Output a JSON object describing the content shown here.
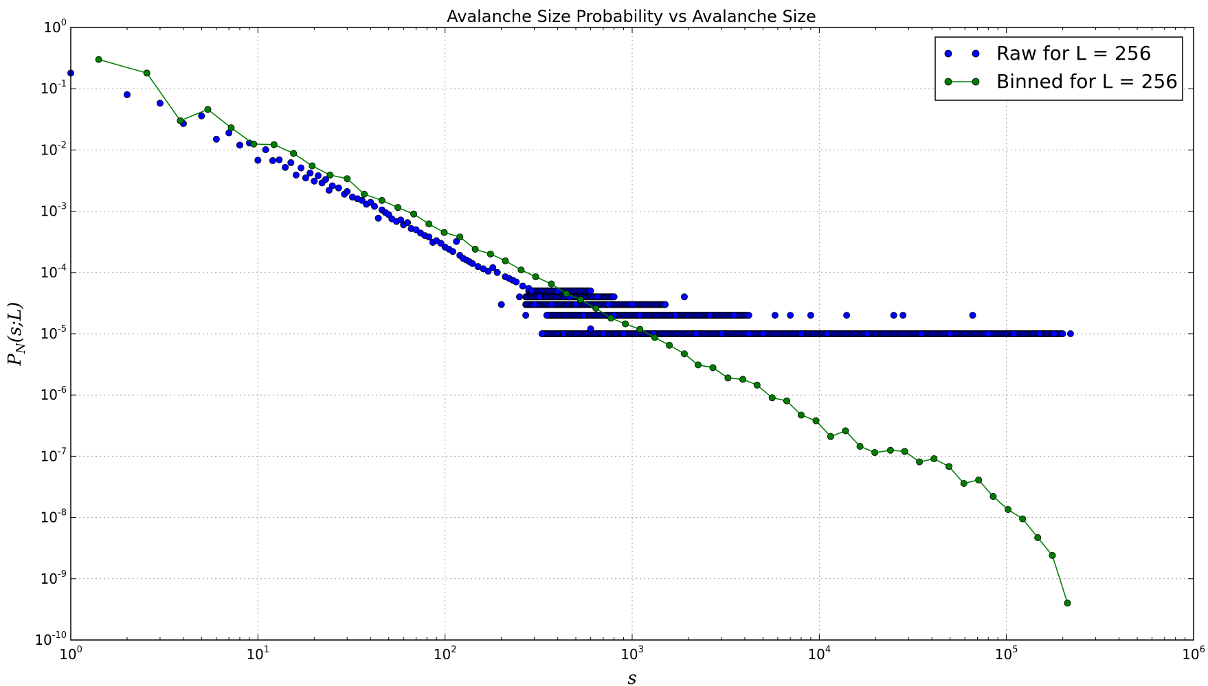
{
  "chart_data": {
    "type": "scatter",
    "title": "Avalanche Size Probability vs Avalanche Size",
    "xlabel": "s",
    "ylabel": "P_N(s;L)",
    "xscale": "log",
    "yscale": "log",
    "xlim": [
      1,
      1000000
    ],
    "ylim": [
      1e-10,
      1
    ],
    "x_tick_exponents": [
      "0",
      "1",
      "2",
      "3",
      "4",
      "5",
      "6"
    ],
    "y_tick_exponents": [
      "0",
      "-1",
      "-2",
      "-3",
      "-4",
      "-5",
      "-6",
      "-7",
      "-8",
      "-9",
      "-10"
    ],
    "tick_base": "10",
    "grid": true,
    "legend_position": "top-right",
    "series": [
      {
        "name": "Raw for L = 256",
        "style": "markers",
        "color": "#0000ff",
        "points": [
          [
            1,
            0.18
          ],
          [
            2,
            0.08
          ],
          [
            3,
            0.058
          ],
          [
            4,
            0.027
          ],
          [
            5,
            0.036
          ],
          [
            6,
            0.015
          ],
          [
            7,
            0.019
          ],
          [
            8,
            0.012
          ],
          [
            9,
            0.013
          ],
          [
            10,
            0.0068
          ],
          [
            11,
            0.0101
          ],
          [
            12,
            0.0067
          ],
          [
            13,
            0.0069
          ],
          [
            14,
            0.0052
          ],
          [
            15,
            0.0062
          ],
          [
            16,
            0.0039
          ],
          [
            17,
            0.0051
          ],
          [
            18,
            0.0035
          ],
          [
            19,
            0.0042
          ],
          [
            20,
            0.0031
          ],
          [
            21,
            0.0038
          ],
          [
            22,
            0.0029
          ],
          [
            23,
            0.0033
          ],
          [
            24,
            0.0022
          ],
          [
            25,
            0.0026
          ],
          [
            27,
            0.0024
          ],
          [
            29,
            0.0019
          ],
          [
            30,
            0.0021
          ],
          [
            32,
            0.0017
          ],
          [
            34,
            0.0016
          ],
          [
            36,
            0.0015
          ],
          [
            38,
            0.0013
          ],
          [
            40,
            0.0014
          ],
          [
            42,
            0.0012
          ],
          [
            44,
            0.00077
          ],
          [
            46,
            0.00105
          ],
          [
            48,
            0.00095
          ],
          [
            50,
            0.00088
          ],
          [
            52,
            0.00075
          ],
          [
            55,
            0.00068
          ],
          [
            58,
            0.00072
          ],
          [
            60,
            0.0006
          ],
          [
            63,
            0.00065
          ],
          [
            66,
            0.00052
          ],
          [
            70,
            0.0005
          ],
          [
            74,
            0.00044
          ],
          [
            78,
            0.0004
          ],
          [
            82,
            0.00038
          ],
          [
            86,
            0.00031
          ],
          [
            90,
            0.00033
          ],
          [
            95,
            0.0003
          ],
          [
            100,
            0.00026
          ],
          [
            105,
            0.00024
          ],
          [
            110,
            0.00022
          ],
          [
            115,
            0.00032
          ],
          [
            120,
            0.00019
          ],
          [
            125,
            0.00017
          ],
          [
            130,
            0.00016
          ],
          [
            135,
            0.00015
          ],
          [
            140,
            0.00014
          ],
          [
            150,
            0.000125
          ],
          [
            160,
            0.000115
          ],
          [
            170,
            0.000105
          ],
          [
            180,
            0.00012
          ],
          [
            190,
            0.0001
          ],
          [
            200,
            3e-05
          ],
          [
            210,
            8.5e-05
          ],
          [
            220,
            8e-05
          ],
          [
            230,
            7.5e-05
          ],
          [
            240,
            7e-05
          ],
          [
            250,
            4e-05
          ],
          [
            260,
            6e-05
          ],
          [
            270,
            2e-05
          ],
          [
            280,
            5.5e-05
          ],
          [
            290,
            5e-05
          ],
          [
            300,
            3e-05
          ],
          [
            320,
            4e-05
          ],
          [
            330,
            1e-05
          ],
          [
            350,
            2e-05
          ],
          [
            370,
            3e-05
          ],
          [
            400,
            5e-05
          ],
          [
            430,
            1e-05
          ],
          [
            460,
            4e-05
          ],
          [
            500,
            3e-05
          ],
          [
            550,
            2e-05
          ],
          [
            600,
            1.2e-05
          ],
          [
            650,
            4e-05
          ],
          [
            700,
            1e-05
          ],
          [
            750,
            3e-05
          ],
          [
            800,
            2e-05
          ],
          [
            900,
            1e-05
          ],
          [
            1000,
            3e-05
          ],
          [
            1100,
            2e-05
          ],
          [
            1300,
            1e-05
          ],
          [
            1500,
            3e-05
          ],
          [
            1700,
            2e-05
          ],
          [
            1900,
            4e-05
          ],
          [
            2200,
            1e-05
          ],
          [
            2600,
            2e-05
          ],
          [
            3000,
            1e-05
          ],
          [
            3500,
            2e-05
          ],
          [
            4200,
            1e-05
          ],
          [
            5000,
            1e-05
          ],
          [
            5800,
            2e-05
          ],
          [
            7000,
            2e-05
          ],
          [
            8000,
            1e-05
          ],
          [
            9000,
            2e-05
          ],
          [
            11000,
            1e-05
          ],
          [
            14000,
            2e-05
          ],
          [
            18000,
            1e-05
          ],
          [
            25000,
            2e-05
          ],
          [
            28000,
            2e-05
          ],
          [
            35000,
            1e-05
          ],
          [
            50000,
            1e-05
          ],
          [
            66000,
            2e-05
          ],
          [
            80000,
            1e-05
          ],
          [
            110000,
            1e-05
          ],
          [
            150000,
            1e-05
          ],
          [
            180000,
            1e-05
          ],
          [
            220000,
            1e-05
          ]
        ],
        "constant_bands": [
          {
            "y": 1e-05,
            "x_range": [
              330,
              200000
            ]
          },
          {
            "y": 2e-05,
            "x_range": [
              350,
              4200
            ]
          },
          {
            "y": 3e-05,
            "x_range": [
              270,
              1500
            ]
          },
          {
            "y": 4e-05,
            "x_range": [
              270,
              800
            ]
          },
          {
            "y": 5e-05,
            "x_range": [
              280,
              600
            ]
          }
        ]
      },
      {
        "name": "Binned for L = 256",
        "style": "line+markers",
        "color": "#007f00",
        "points": [
          [
            1.41,
            0.3
          ],
          [
            2.55,
            0.18
          ],
          [
            3.85,
            0.03
          ],
          [
            5.4,
            0.046
          ],
          [
            7.2,
            0.023
          ],
          [
            9.5,
            0.0125
          ],
          [
            12.2,
            0.0122
          ],
          [
            15.5,
            0.0088
          ],
          [
            19.5,
            0.0055
          ],
          [
            24.3,
            0.0039
          ],
          [
            30,
            0.0034
          ],
          [
            37,
            0.0019
          ],
          [
            46,
            0.0015
          ],
          [
            56,
            0.00115
          ],
          [
            68,
            0.0009
          ],
          [
            82,
            0.00062
          ],
          [
            99,
            0.00045
          ],
          [
            120,
            0.00038
          ],
          [
            145,
            0.00024
          ],
          [
            175,
            0.0002
          ],
          [
            210,
            0.000155
          ],
          [
            255,
            0.00011
          ],
          [
            305,
            8.5e-05
          ],
          [
            370,
            6.5e-05
          ],
          [
            445,
            4.5e-05
          ],
          [
            530,
            3.6e-05
          ],
          [
            640,
            2.6e-05
          ],
          [
            770,
            1.8e-05
          ],
          [
            920,
            1.45e-05
          ],
          [
            1100,
            1.18e-05
          ],
          [
            1320,
            8.7e-06
          ],
          [
            1580,
            6.5e-06
          ],
          [
            1900,
            4.7e-06
          ],
          [
            2250,
            3.1e-06
          ],
          [
            2700,
            2.8e-06
          ],
          [
            3250,
            1.9e-06
          ],
          [
            3900,
            1.8e-06
          ],
          [
            4650,
            1.45e-06
          ],
          [
            5600,
            9e-07
          ],
          [
            6700,
            8e-07
          ],
          [
            8000,
            4.7e-07
          ],
          [
            9600,
            3.8e-07
          ],
          [
            11500,
            2.1e-07
          ],
          [
            13800,
            2.6e-07
          ],
          [
            16500,
            1.45e-07
          ],
          [
            19800,
            1.15e-07
          ],
          [
            24000,
            1.25e-07
          ],
          [
            28600,
            1.2e-07
          ],
          [
            34300,
            8.1e-08
          ],
          [
            41000,
            9.1e-08
          ],
          [
            49300,
            6.8e-08
          ],
          [
            59200,
            3.6e-08
          ],
          [
            71000,
            4.1e-08
          ],
          [
            85000,
            2.2e-08
          ],
          [
            102000,
            1.35e-08
          ],
          [
            122000,
            9.5e-09
          ],
          [
            147000,
            4.7e-09
          ],
          [
            176000,
            2.4e-09
          ],
          [
            212000,
            4e-10
          ]
        ]
      }
    ]
  }
}
